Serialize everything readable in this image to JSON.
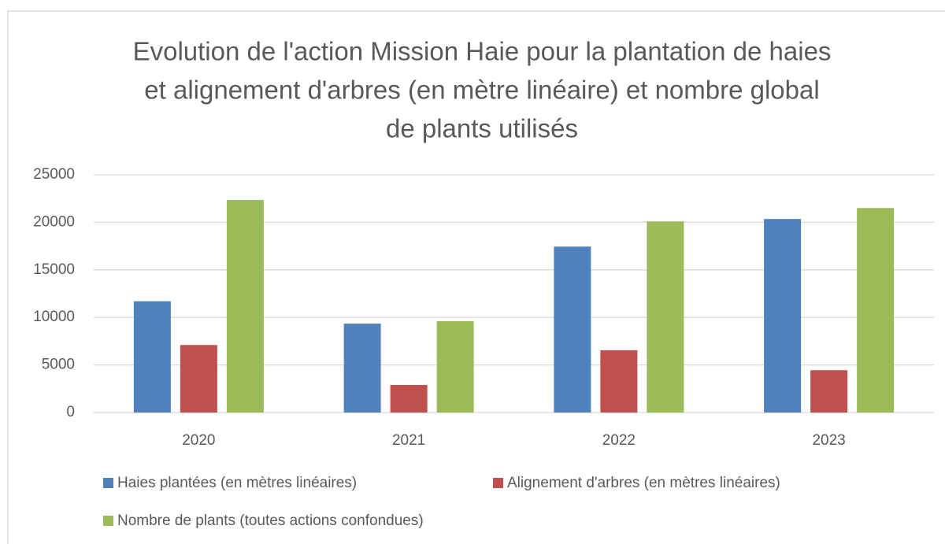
{
  "chart_data": {
    "type": "bar",
    "title": [
      "Evolution de l'action Mission Haie pour la plantation de haies",
      "et alignement d'arbres (en mètre linéaire) et nombre global",
      "de plants utilisés"
    ],
    "categories": [
      "2020",
      "2021",
      "2022",
      "2023"
    ],
    "series": [
      {
        "name": "Haies plantées (en mètres linéaires)",
        "color": "#4f81bd",
        "values": [
          11700,
          9350,
          17450,
          20350
        ]
      },
      {
        "name": "Alignement d'arbres (en mètres linéaires)",
        "color": "#c0504d",
        "values": [
          7100,
          2900,
          6550,
          4450
        ]
      },
      {
        "name": "Nombre de plants (toutes actions confondues)",
        "color": "#9bbb59",
        "values": [
          22350,
          9600,
          20100,
          21500
        ]
      }
    ],
    "ylim": [
      0,
      25000
    ],
    "yticks": [
      0,
      5000,
      10000,
      15000,
      20000,
      25000
    ],
    "grid": true,
    "legend": "bottom"
  }
}
